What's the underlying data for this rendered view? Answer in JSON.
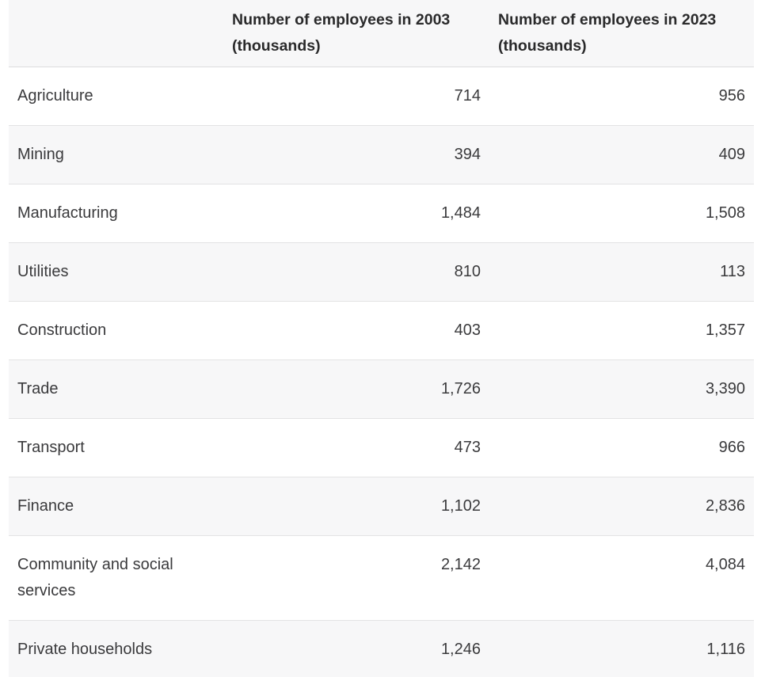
{
  "chart_data": {
    "type": "table",
    "title": "",
    "columns": [
      "",
      "Number of employees in 2003 (thousands)",
      "Number of employees in 2023 (thousands)"
    ],
    "categories": [
      "Agriculture",
      "Mining",
      "Manufacturing",
      "Utilities",
      "Construction",
      "Trade",
      "Transport",
      "Finance",
      "Community and social services",
      "Private households"
    ],
    "series": [
      {
        "name": "Number of employees in 2003 (thousands)",
        "values": [
          714,
          394,
          1484,
          810,
          403,
          1726,
          473,
          1102,
          2142,
          1246
        ]
      },
      {
        "name": "Number of employees in 2023 (thousands)",
        "values": [
          956,
          409,
          1508,
          113,
          1357,
          3390,
          966,
          2836,
          4084,
          1116
        ]
      }
    ],
    "rows": [
      [
        "Agriculture",
        "714",
        "956"
      ],
      [
        "Mining",
        "394",
        "409"
      ],
      [
        "Manufacturing",
        "1,484",
        "1,508"
      ],
      [
        "Utilities",
        "810",
        "113"
      ],
      [
        "Construction",
        "403",
        "1,357"
      ],
      [
        "Trade",
        "1,726",
        "3,390"
      ],
      [
        "Transport",
        "473",
        "966"
      ],
      [
        "Finance",
        "1,102",
        "2,836"
      ],
      [
        "Community and social services",
        "2,142",
        "4,084"
      ],
      [
        "Private households",
        "1,246",
        "1,116"
      ]
    ],
    "layout": {
      "zebra_striping": true,
      "header_alignment": "left",
      "number_alignment": "right"
    }
  },
  "colors": {
    "header_bg": "#f7f7f8",
    "stripe_bg": "#f7f7f8",
    "border": "#e3e3e4",
    "header_text": "#2a2a2b",
    "body_text": "#3a3a3c",
    "page_bg": "#ffffff"
  }
}
